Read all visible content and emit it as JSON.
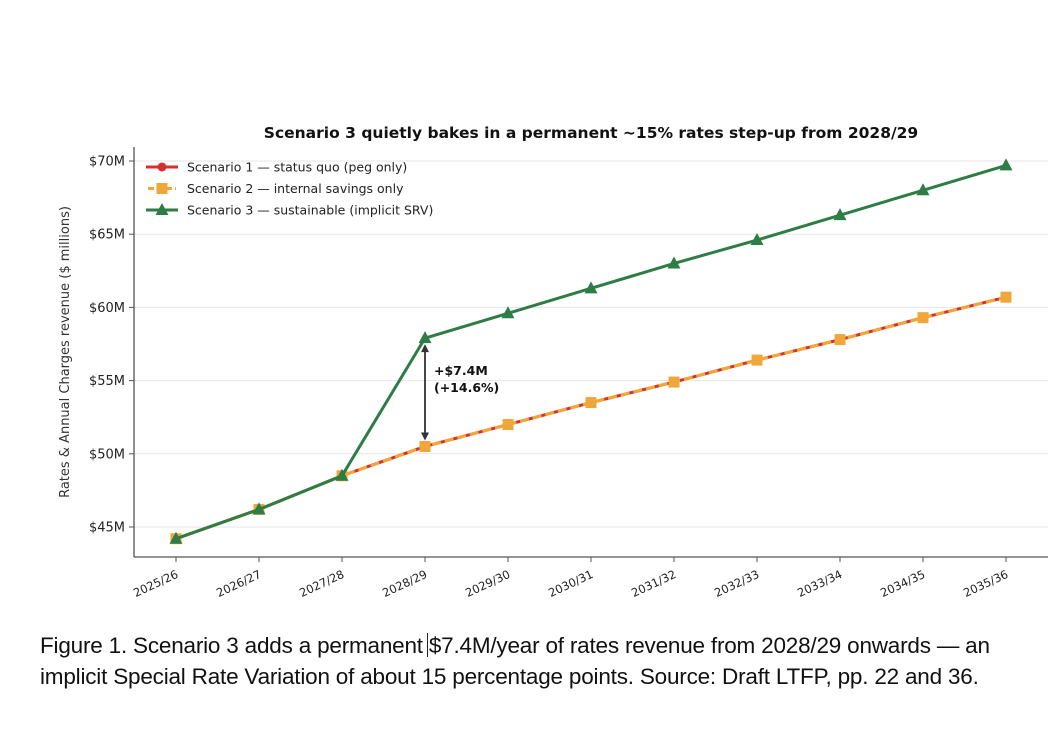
{
  "chart_data": {
    "type": "line",
    "title": "Scenario 3 quietly bakes in a permanent ~15% rates step-up from 2028/29",
    "xlabel": "",
    "ylabel": "Rates & Annual Charges revenue ($ millions)",
    "ylim": [
      43.2,
      70.7
    ],
    "yticks": [
      45,
      50,
      55,
      60,
      65,
      70
    ],
    "ytick_labels": [
      "$45M",
      "$50M",
      "$55M",
      "$60M",
      "$65M",
      "$70M"
    ],
    "grid": "horizontal",
    "legend_position": "top-left",
    "categories": [
      "2025/26",
      "2026/27",
      "2027/28",
      "2028/29",
      "2029/30",
      "2030/31",
      "2031/32",
      "2032/33",
      "2033/34",
      "2034/35",
      "2035/36"
    ],
    "series": [
      {
        "name": "Scenario 1 — status quo (peg only)",
        "color": "#d62f2f",
        "marker": "circle",
        "style": "solid",
        "values": [
          44.2,
          46.2,
          48.5,
          50.5,
          52.0,
          53.5,
          54.9,
          56.4,
          57.8,
          59.3,
          60.7
        ]
      },
      {
        "name": "Scenario 2 — internal savings only",
        "color": "#f0a73a",
        "marker": "square",
        "style": "dashed",
        "values": [
          44.2,
          46.2,
          48.5,
          50.5,
          52.0,
          53.5,
          54.9,
          56.4,
          57.8,
          59.3,
          60.7
        ]
      },
      {
        "name": "Scenario 3 — sustainable (implicit SRV)",
        "color": "#2e7d46",
        "marker": "triangle",
        "style": "solid",
        "values": [
          44.2,
          46.2,
          48.5,
          57.9,
          59.6,
          61.3,
          63.0,
          64.6,
          66.3,
          68.0,
          69.7
        ]
      }
    ],
    "annotations": [
      {
        "category": "2028/29",
        "from": 50.5,
        "to": 57.9,
        "label_line1": "+$7.4M",
        "label_line2": "(+14.6%)"
      }
    ]
  },
  "caption": {
    "part1": "Figure 1. Scenario 3 adds a permanent",
    "part2": "$7.4M/year of rates revenue from 2028/29 onwards — an implicit Special Rate Variation of about 15 percentage points. Source: Draft LTFP, pp. 22 and 36."
  }
}
